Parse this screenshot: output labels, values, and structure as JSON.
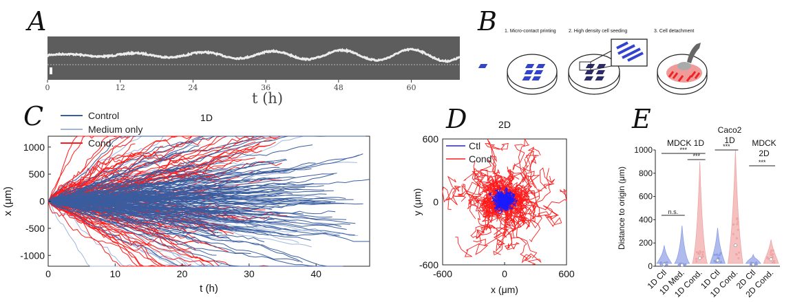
{
  "panels": {
    "A": {
      "label": "A",
      "xlabel": "t (h)",
      "ticks": [
        "0",
        "12",
        "24",
        "36",
        "48",
        "60"
      ],
      "tick_values": [
        0,
        12,
        24,
        36,
        48,
        60
      ],
      "xlim": [
        0,
        68
      ]
    },
    "B": {
      "label": "B",
      "steps": [
        "1. Micro-contact printing",
        "2. High density cell seeding",
        "3. Cell detachment"
      ]
    },
    "C": {
      "label": "C"
    },
    "D": {
      "label": "D"
    },
    "E": {
      "label": "E"
    }
  },
  "chart_data": [
    {
      "id": "C",
      "type": "line",
      "title": "1D",
      "xlabel": "t (h)",
      "ylabel": "x (μm)",
      "xlim": [
        0,
        48
      ],
      "ylim": [
        -1200,
        1200
      ],
      "xticks": [
        "0",
        "10",
        "20",
        "30",
        "40"
      ],
      "yticks": [
        "1000",
        "500",
        "0",
        "-500",
        "-1000"
      ],
      "series": [
        {
          "name": "Control",
          "color": "#3a5d9f",
          "n_tracks": 150,
          "final_spread": 320,
          "t_max": 48
        },
        {
          "name": "Medium only",
          "color": "#9fb6de",
          "n_tracks": 40,
          "final_spread": 480,
          "t_max": 48
        },
        {
          "name": "Cond.",
          "color": "#ff1a1a",
          "n_tracks": 110,
          "final_spread": 650,
          "t_max": 36
        }
      ]
    },
    {
      "id": "D",
      "type": "line",
      "title": "2D",
      "xlabel": "x (μm)",
      "ylabel": "y (μm)",
      "xlim": [
        -600,
        600
      ],
      "ylim": [
        -600,
        600
      ],
      "xticks": [
        "-600",
        "0",
        "600"
      ],
      "yticks": [
        "600",
        "0",
        "-600"
      ],
      "series": [
        {
          "name": "Ctl",
          "color": "#1a1aff",
          "spread": 70
        },
        {
          "name": "Cond",
          "color": "#ff1a1a",
          "spread": 280
        }
      ]
    },
    {
      "id": "E",
      "type": "violin",
      "ylabel": "Distance to origin (μm)",
      "ylim": [
        0,
        1000
      ],
      "yticks": [
        "0",
        "200",
        "400",
        "600",
        "800",
        "1000"
      ],
      "categories": [
        "1D Ctl",
        "1D Med.",
        "1D Cond.",
        "1D Ctl",
        "1D Cond.",
        "2D Ctl",
        "2D Cond."
      ],
      "colors": [
        "#8d9ee6",
        "#8d9ee6",
        "#f0a5a5",
        "#8d9ee6",
        "#f0a5a5",
        "#8d9ee6",
        "#f0a5a5"
      ],
      "values": [
        {
          "median": 15,
          "max": 180
        },
        {
          "median": 10,
          "max": 350
        },
        {
          "median": 70,
          "max": 900
        },
        {
          "median": 50,
          "max": 330
        },
        {
          "median": 180,
          "max": 1000
        },
        {
          "median": 15,
          "max": 100
        },
        {
          "median": 60,
          "max": 230
        }
      ],
      "group_labels": [
        "MDCK 1D",
        "Caco2 1D",
        "MDCK 2D"
      ],
      "annotations": [
        "***",
        "***",
        "n.s.",
        "***",
        "***"
      ]
    }
  ]
}
